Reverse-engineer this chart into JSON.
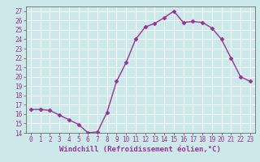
{
  "x": [
    0,
    1,
    2,
    3,
    4,
    5,
    6,
    7,
    8,
    9,
    10,
    11,
    12,
    13,
    14,
    15,
    16,
    17,
    18,
    19,
    20,
    21,
    22,
    23
  ],
  "y": [
    16.5,
    16.5,
    16.4,
    15.9,
    15.4,
    14.9,
    14.0,
    14.1,
    16.2,
    19.5,
    21.5,
    24.0,
    25.3,
    25.7,
    26.3,
    27.0,
    25.8,
    25.9,
    25.8,
    25.2,
    24.0,
    22.0,
    20.0,
    19.5
  ],
  "line_color": "#993399",
  "marker": "D",
  "markersize": 2.5,
  "linewidth": 1.0,
  "xlabel": "Windchill (Refroidissement éolien,°C)",
  "xlabel_fontsize": 6.5,
  "ylim": [
    14,
    27.5
  ],
  "xlim": [
    -0.5,
    23.5
  ],
  "yticks": [
    14,
    15,
    16,
    17,
    18,
    19,
    20,
    21,
    22,
    23,
    24,
    25,
    26,
    27
  ],
  "xticks": [
    0,
    1,
    2,
    3,
    4,
    5,
    6,
    7,
    8,
    9,
    10,
    11,
    12,
    13,
    14,
    15,
    16,
    17,
    18,
    19,
    20,
    21,
    22,
    23
  ],
  "bg_color": "#cce8e8",
  "grid_color": "#ffffff",
  "tick_fontsize": 5.5,
  "fig_bg": "#cce8e8"
}
